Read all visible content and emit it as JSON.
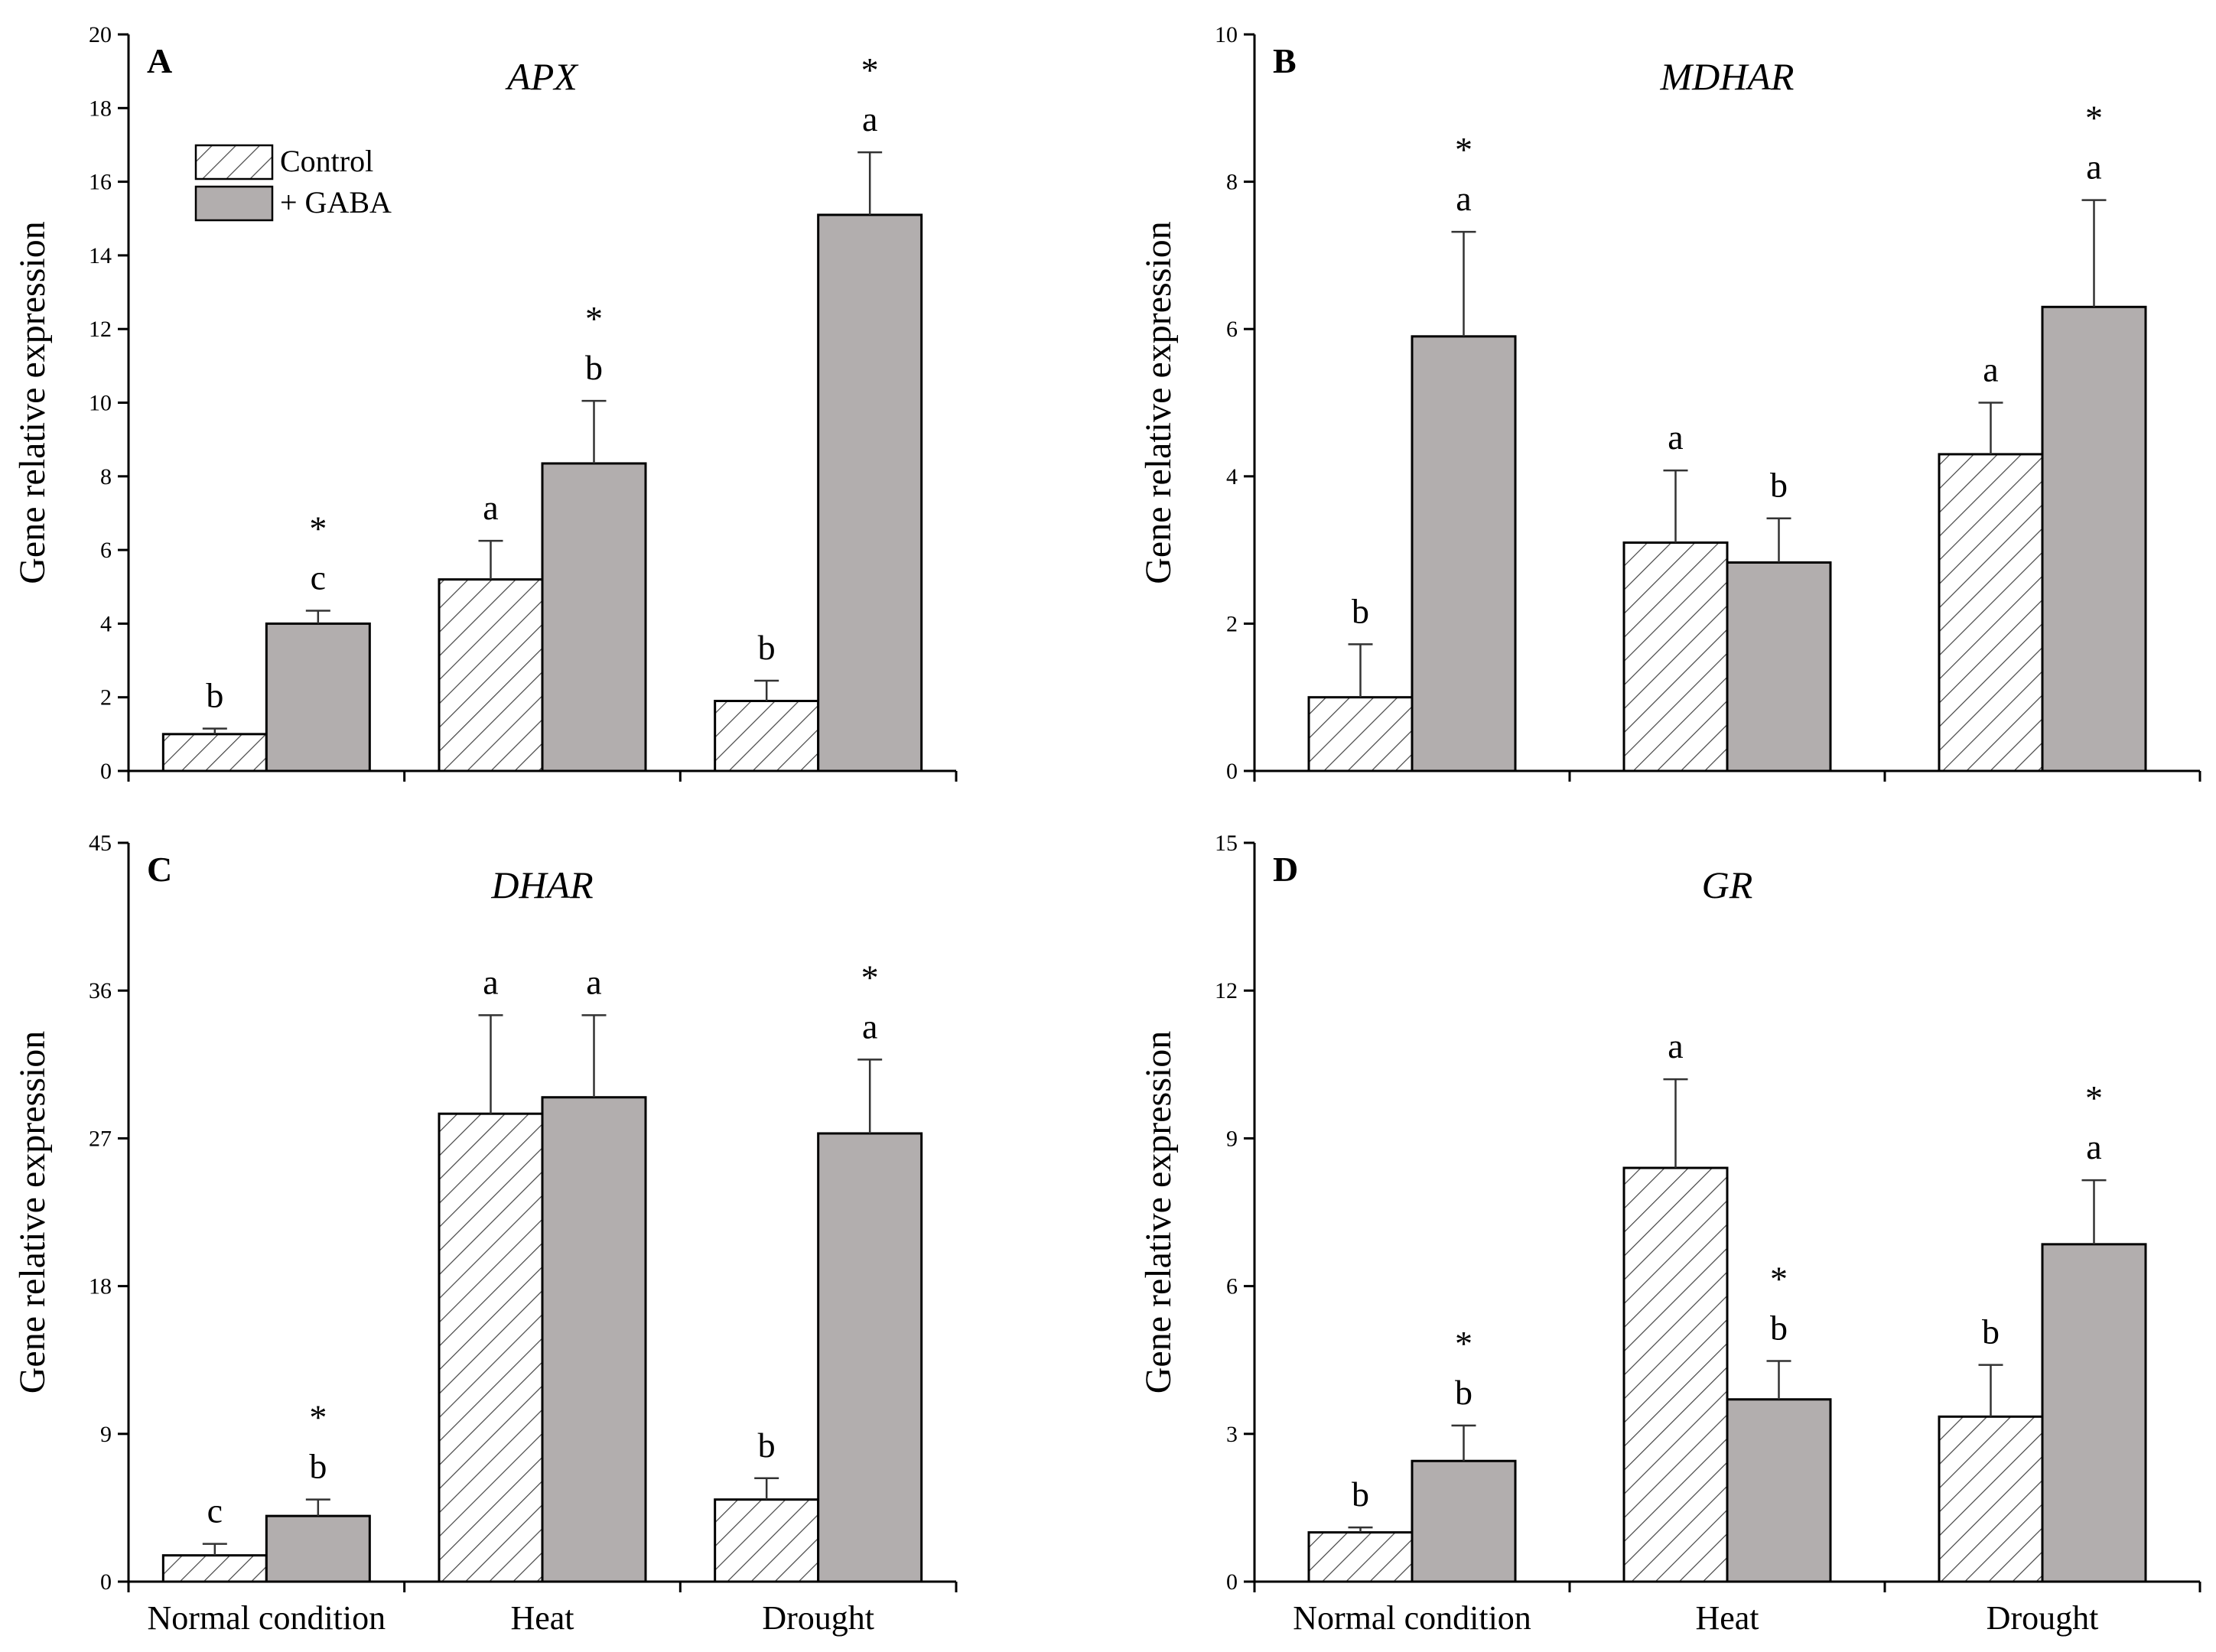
{
  "colors": {
    "gaba_fill": "#b2aeae",
    "control_fill": "#ffffff",
    "stroke": "#000000",
    "hatch": "#444444",
    "error_bar": "#333333"
  },
  "chart_data": [
    {
      "type": "bar",
      "panel": "A",
      "title": "APX",
      "ylabel": "Gene relative expression",
      "ylim": [
        0,
        20
      ],
      "yticks": [
        "0",
        "2",
        "4",
        "6",
        "8",
        "10",
        "12",
        "14",
        "16",
        "18",
        "20"
      ],
      "categories": [
        "Normal condition",
        "Heat",
        "Drought"
      ],
      "show_xlabels": false,
      "legend": {
        "position": "top-left",
        "entries": [
          "Control",
          "+ GABA"
        ]
      },
      "series": [
        {
          "name": "Control",
          "values": [
            1.0,
            5.2,
            1.9
          ],
          "errors": [
            0.15,
            1.05,
            0.55
          ],
          "letters": [
            "b",
            "a",
            "b"
          ],
          "stars": [
            "",
            "",
            ""
          ]
        },
        {
          "name": "+ GABA",
          "values": [
            4.0,
            8.35,
            15.1
          ],
          "errors": [
            0.35,
            1.7,
            1.7
          ],
          "letters": [
            "c",
            "b",
            "a"
          ],
          "stars": [
            "*",
            "*",
            "*"
          ]
        }
      ]
    },
    {
      "type": "bar",
      "panel": "B",
      "title": "MDHAR",
      "ylabel": "Gene relative expression",
      "ylim": [
        0,
        10
      ],
      "yticks": [
        "0",
        "2",
        "4",
        "6",
        "8",
        "10"
      ],
      "categories": [
        "Normal condition",
        "Heat",
        "Drought"
      ],
      "show_xlabels": false,
      "series": [
        {
          "name": "Control",
          "values": [
            1.0,
            3.1,
            4.3
          ],
          "errors": [
            0.72,
            0.98,
            0.7
          ],
          "letters": [
            "b",
            "a",
            "a"
          ],
          "stars": [
            "",
            "",
            ""
          ]
        },
        {
          "name": "+ GABA",
          "values": [
            5.9,
            2.83,
            6.3
          ],
          "errors": [
            1.42,
            0.6,
            1.45
          ],
          "letters": [
            "a",
            "b",
            "a"
          ],
          "stars": [
            "*",
            "",
            "*"
          ]
        }
      ]
    },
    {
      "type": "bar",
      "panel": "C",
      "title": "DHAR",
      "ylabel": "Gene relative expression",
      "ylim": [
        0,
        45
      ],
      "yticks": [
        "0",
        "9",
        "18",
        "27",
        "36",
        "45"
      ],
      "categories": [
        "Normal condition",
        "Heat",
        "Drought"
      ],
      "show_xlabels": true,
      "series": [
        {
          "name": "Control",
          "values": [
            1.6,
            28.5,
            5.0
          ],
          "errors": [
            0.7,
            6.0,
            1.3
          ],
          "letters": [
            "c",
            "a",
            "b"
          ],
          "stars": [
            "",
            "",
            ""
          ]
        },
        {
          "name": "+ GABA",
          "values": [
            4.0,
            29.5,
            27.3
          ],
          "errors": [
            1.0,
            5.0,
            4.5
          ],
          "letters": [
            "b",
            "a",
            "a"
          ],
          "stars": [
            "*",
            "",
            "*"
          ]
        }
      ]
    },
    {
      "type": "bar",
      "panel": "D",
      "title": "GR",
      "ylabel": "Gene relative expression",
      "ylim": [
        0,
        15
      ],
      "yticks": [
        "0",
        "3",
        "6",
        "9",
        "12",
        "15"
      ],
      "categories": [
        "Normal condition",
        "Heat",
        "Drought"
      ],
      "show_xlabels": true,
      "series": [
        {
          "name": "Control",
          "values": [
            1.0,
            8.4,
            3.35
          ],
          "errors": [
            0.1,
            1.8,
            1.05
          ],
          "letters": [
            "b",
            "a",
            "b"
          ],
          "stars": [
            "",
            "",
            ""
          ]
        },
        {
          "name": "+ GABA",
          "values": [
            2.45,
            3.7,
            6.85
          ],
          "errors": [
            0.72,
            0.78,
            1.3
          ],
          "letters": [
            "b",
            "b",
            "a"
          ],
          "stars": [
            "*",
            "*",
            "*"
          ]
        }
      ]
    }
  ]
}
